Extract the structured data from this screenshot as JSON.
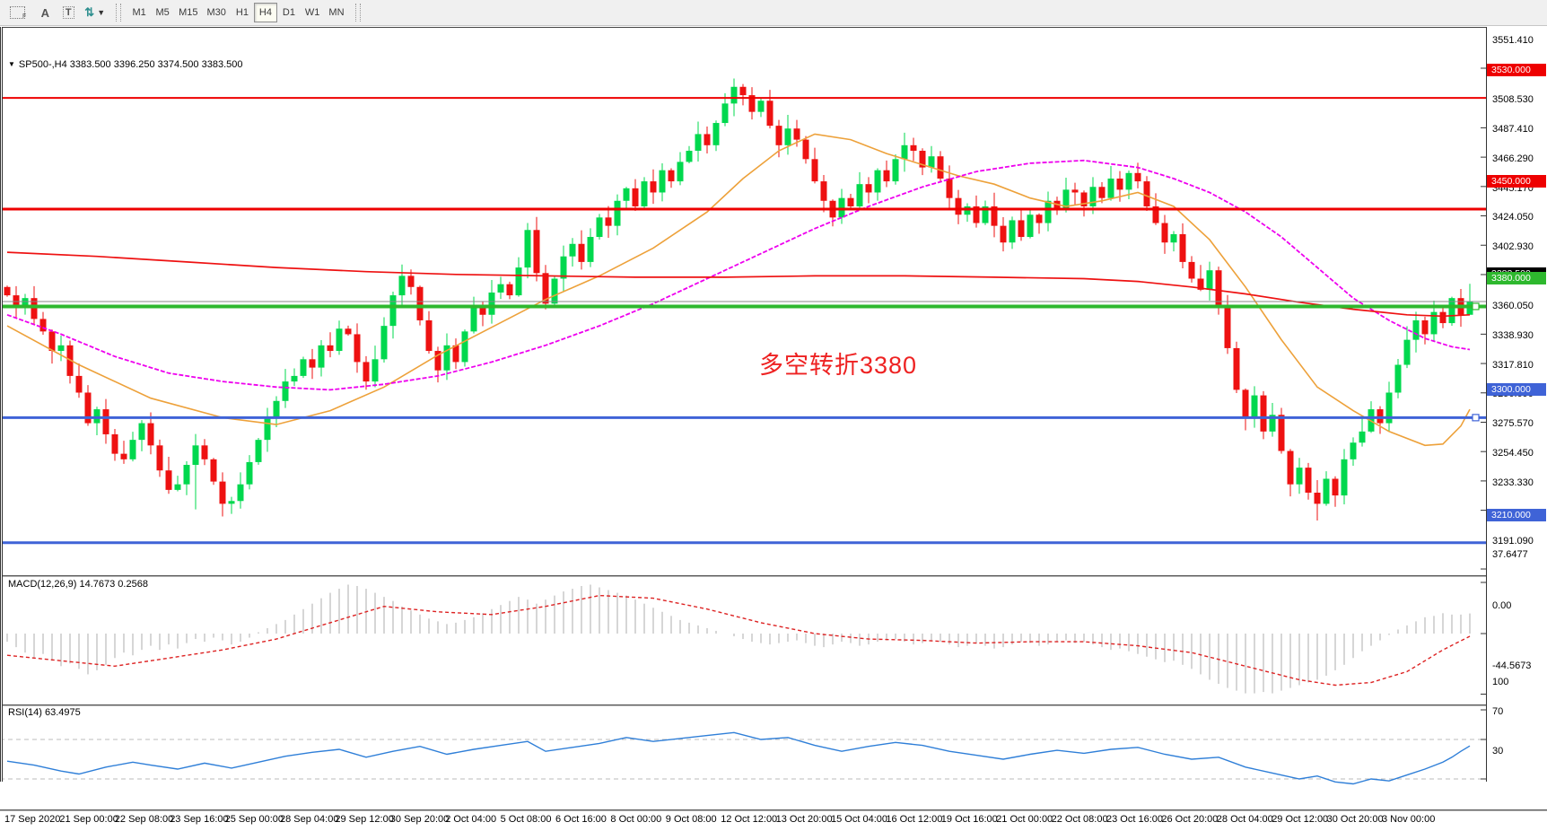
{
  "toolbar": {
    "grid_f_label": "F",
    "label_a_glyph": "A",
    "label_t_glyph": "T",
    "objects_glyph": "⇅",
    "caret_glyph": "▼",
    "timeframes": [
      "M1",
      "M5",
      "M15",
      "M30",
      "H1",
      "H4",
      "D1",
      "W1",
      "MN"
    ],
    "active_timeframe": "H4"
  },
  "symbol_bar": {
    "arrow": "▼",
    "text": "SP500-,H4  3383.500 3396.250 3374.500 3383.500"
  },
  "annotation": {
    "text": "多空转折3380",
    "color": "#ee2222"
  },
  "panels": {
    "macd": {
      "label": "MACD(12,26,9) 14.7673 0.2568"
    },
    "rsi": {
      "label": "RSI(14) 63.4975"
    }
  },
  "colors": {
    "up": "#00d84e",
    "down": "#ee1111",
    "ma_orange": "#eda13a",
    "ma_magenta": "#ee00ee",
    "ma_red": "#ee1111",
    "hline_red": "#ee0000",
    "hline_green": "#2eb82e",
    "hline_blue": "#3f63d7",
    "current_line": "#888888",
    "macd_bar": "#cccccc",
    "macd_signal": "#dd2222",
    "rsi_line": "#2f7fd8",
    "rsi_level": "#bbbbbb",
    "label_black": "#000000"
  },
  "chart_data": {
    "type": "candlestick",
    "title": "SP500-,H4",
    "timeframe": "H4",
    "ohlc_display": {
      "open": "3383.500",
      "high": "3396.250",
      "low": "3374.500",
      "close": "3383.500"
    },
    "price_axis_ticks": [
      3551.41,
      3508.53,
      3487.41,
      3466.29,
      3445.17,
      3424.05,
      3402.93,
      3360.05,
      3338.93,
      3317.81,
      3296.69,
      3275.57,
      3254.45,
      3233.33,
      3191.09
    ],
    "level_labels": [
      {
        "price": 3530,
        "text": "3530.000",
        "color": "#ee0000"
      },
      {
        "price": 3450,
        "text": "3450.000",
        "color": "#ee0000"
      },
      {
        "price": 3383.5,
        "text": "3383.500",
        "color": "#000000"
      },
      {
        "price": 3380,
        "text": "3380.000",
        "color": "#2eb82e"
      },
      {
        "price": 3300,
        "text": "3300.000",
        "color": "#3f63d7"
      },
      {
        "price": 3210,
        "text": "3210.000",
        "color": "#3f63d7"
      }
    ],
    "hlines": [
      {
        "price": 3530,
        "color": "#ee0000",
        "w": 2,
        "handle": false
      },
      {
        "price": 3450,
        "color": "#ee0000",
        "w": 3,
        "handle": false
      },
      {
        "price": 3380,
        "color": "#2eb82e",
        "w": 4,
        "handle": true
      },
      {
        "price": 3300,
        "color": "#3f63d7",
        "w": 3,
        "handle": true
      },
      {
        "price": 3210,
        "color": "#3f63d7",
        "w": 3,
        "handle": false
      }
    ],
    "current_price": {
      "value": 3383.5,
      "label": "3383.500"
    },
    "closes": [
      3388,
      3380,
      3386,
      3371,
      3362,
      3348,
      3352,
      3330,
      3318,
      3296,
      3306,
      3288,
      3274,
      3270,
      3284,
      3296,
      3280,
      3262,
      3248,
      3252,
      3266,
      3280,
      3270,
      3254,
      3238,
      3240,
      3252,
      3268,
      3284,
      3300,
      3312,
      3326,
      3330,
      3342,
      3336,
      3352,
      3348,
      3364,
      3360,
      3340,
      3326,
      3342,
      3366,
      3388,
      3402,
      3394,
      3370,
      3348,
      3334,
      3352,
      3340,
      3362,
      3380,
      3374,
      3390,
      3396,
      3388,
      3408,
      3435,
      3404,
      3382,
      3400,
      3416,
      3425,
      3412,
      3430,
      3444,
      3438,
      3456,
      3465,
      3452,
      3470,
      3462,
      3478,
      3470,
      3484,
      3492,
      3504,
      3496,
      3512,
      3526,
      3538,
      3532,
      3520,
      3528,
      3510,
      3496,
      3508,
      3500,
      3486,
      3470,
      3456,
      3444,
      3458,
      3452,
      3468,
      3462,
      3478,
      3470,
      3486,
      3496,
      3492,
      3480,
      3488,
      3472,
      3458,
      3446,
      3452,
      3440,
      3452,
      3438,
      3426,
      3442,
      3430,
      3446,
      3440,
      3456,
      3450,
      3464,
      3462,
      3452,
      3466,
      3458,
      3472,
      3464,
      3476,
      3470,
      3452,
      3440,
      3426,
      3432,
      3412,
      3400,
      3392,
      3406,
      3380,
      3350,
      3320,
      3300,
      3316,
      3290,
      3302,
      3276,
      3252,
      3264,
      3246,
      3238,
      3256,
      3244,
      3270,
      3282,
      3290,
      3306,
      3296,
      3318,
      3338,
      3356,
      3370,
      3360,
      3376,
      3368,
      3386,
      3374,
      3383.5
    ],
    "first_open": 3394,
    "wick_high_overrides": {
      "58": 3440,
      "81": 3544,
      "82": 3540,
      "163": 3396.25
    },
    "wick_low_overrides": {
      "21": 3234,
      "146": 3226,
      "163": 3374.5
    },
    "ma": {
      "orange": [
        [
          0,
          3366
        ],
        [
          8,
          3338
        ],
        [
          16,
          3314
        ],
        [
          24,
          3300
        ],
        [
          30,
          3295
        ],
        [
          36,
          3305
        ],
        [
          42,
          3322
        ],
        [
          48,
          3345
        ],
        [
          54,
          3365
        ],
        [
          60,
          3385
        ],
        [
          66,
          3402
        ],
        [
          72,
          3422
        ],
        [
          78,
          3448
        ],
        [
          82,
          3472
        ],
        [
          86,
          3492
        ],
        [
          90,
          3504
        ],
        [
          94,
          3500
        ],
        [
          98,
          3490
        ],
        [
          102,
          3482
        ],
        [
          106,
          3474
        ],
        [
          110,
          3468
        ],
        [
          114,
          3458
        ],
        [
          118,
          3452
        ],
        [
          122,
          3456
        ],
        [
          126,
          3462
        ],
        [
          130,
          3452
        ],
        [
          134,
          3428
        ],
        [
          138,
          3394
        ],
        [
          142,
          3356
        ],
        [
          146,
          3322
        ],
        [
          150,
          3305
        ],
        [
          154,
          3290
        ],
        [
          158,
          3280
        ],
        [
          160,
          3281
        ],
        [
          162,
          3294
        ],
        [
          163,
          3306
        ]
      ],
      "magenta": [
        [
          0,
          3374
        ],
        [
          6,
          3360
        ],
        [
          12,
          3344
        ],
        [
          18,
          3332
        ],
        [
          24,
          3326
        ],
        [
          30,
          3322
        ],
        [
          36,
          3320
        ],
        [
          42,
          3324
        ],
        [
          48,
          3330
        ],
        [
          54,
          3340
        ],
        [
          60,
          3352
        ],
        [
          66,
          3366
        ],
        [
          72,
          3382
        ],
        [
          78,
          3400
        ],
        [
          84,
          3418
        ],
        [
          90,
          3436
        ],
        [
          96,
          3452
        ],
        [
          102,
          3466
        ],
        [
          108,
          3477
        ],
        [
          114,
          3483
        ],
        [
          120,
          3485
        ],
        [
          126,
          3480
        ],
        [
          130,
          3472
        ],
        [
          134,
          3462
        ],
        [
          138,
          3448
        ],
        [
          142,
          3430
        ],
        [
          146,
          3408
        ],
        [
          150,
          3386
        ],
        [
          154,
          3370
        ],
        [
          158,
          3357
        ],
        [
          161,
          3351
        ],
        [
          163,
          3349
        ]
      ],
      "red": [
        [
          0,
          3419
        ],
        [
          10,
          3416
        ],
        [
          20,
          3412
        ],
        [
          30,
          3408
        ],
        [
          40,
          3405
        ],
        [
          50,
          3403
        ],
        [
          60,
          3402
        ],
        [
          70,
          3401
        ],
        [
          80,
          3401
        ],
        [
          90,
          3402
        ],
        [
          100,
          3402
        ],
        [
          110,
          3401
        ],
        [
          120,
          3400
        ],
        [
          126,
          3398
        ],
        [
          132,
          3394
        ],
        [
          138,
          3389
        ],
        [
          144,
          3383
        ],
        [
          150,
          3378
        ],
        [
          156,
          3374
        ],
        [
          160,
          3373
        ],
        [
          163,
          3374
        ]
      ]
    },
    "macd": {
      "hist": [
        -6,
        -10,
        -14,
        -18,
        -15,
        -20,
        -24,
        -22,
        -26,
        -30,
        -27,
        -23,
        -18,
        -14,
        -16,
        -12,
        -9,
        -12,
        -8,
        -11,
        -7,
        -4,
        -6,
        -3,
        -5,
        -8,
        -6,
        -3,
        1,
        4,
        7,
        10,
        14,
        18,
        22,
        26,
        30,
        33,
        36,
        35,
        33,
        30,
        27,
        24,
        20,
        17,
        14,
        11,
        9,
        7,
        8,
        10,
        12,
        15,
        18,
        21,
        24,
        27,
        25,
        22,
        25,
        28,
        31,
        33,
        35,
        36,
        34,
        32,
        30,
        28,
        25,
        22,
        19,
        16,
        13,
        10,
        8,
        6,
        4,
        2,
        0,
        -2,
        -4,
        -6,
        -7,
        -8,
        -7,
        -6,
        -5,
        -7,
        -9,
        -10,
        -8,
        -6,
        -7,
        -9,
        -8,
        -6,
        -5,
        -4,
        -6,
        -8,
        -7,
        -5,
        -6,
        -8,
        -10,
        -9,
        -7,
        -9,
        -11,
        -10,
        -8,
        -6,
        -7,
        -9,
        -8,
        -6,
        -5,
        -7,
        -6,
        -8,
        -10,
        -12,
        -11,
        -13,
        -15,
        -17,
        -19,
        -21,
        -20,
        -23,
        -26,
        -30,
        -34,
        -37,
        -40,
        -42,
        -44,
        -44,
        -43,
        -44,
        -42,
        -40,
        -38,
        -36,
        -34,
        -31,
        -27,
        -23,
        -18,
        -13,
        -9,
        -5,
        -1,
        3,
        6,
        9,
        12,
        13,
        15,
        14,
        14,
        14.8
      ],
      "signal": [
        [
          0,
          -16
        ],
        [
          6,
          -20
        ],
        [
          12,
          -24
        ],
        [
          18,
          -18
        ],
        [
          24,
          -12
        ],
        [
          30,
          -4
        ],
        [
          36,
          8
        ],
        [
          42,
          20
        ],
        [
          48,
          16
        ],
        [
          54,
          14
        ],
        [
          60,
          20
        ],
        [
          66,
          28
        ],
        [
          72,
          26
        ],
        [
          78,
          18
        ],
        [
          84,
          8
        ],
        [
          90,
          0
        ],
        [
          96,
          -4
        ],
        [
          102,
          -5
        ],
        [
          108,
          -7
        ],
        [
          114,
          -6
        ],
        [
          120,
          -6
        ],
        [
          126,
          -9
        ],
        [
          132,
          -14
        ],
        [
          138,
          -24
        ],
        [
          144,
          -34
        ],
        [
          148,
          -38
        ],
        [
          152,
          -36
        ],
        [
          156,
          -28
        ],
        [
          160,
          -12
        ],
        [
          163,
          -2
        ]
      ],
      "axis": [
        {
          "v": 37.6477,
          "text": "37.6477"
        },
        {
          "v": 0,
          "text": "0.00"
        },
        {
          "v": -44.5673,
          "text": "-44.5673"
        }
      ]
    },
    "rsi": {
      "points": [
        [
          0,
          48
        ],
        [
          3,
          44
        ],
        [
          6,
          38
        ],
        [
          8,
          35
        ],
        [
          11,
          42
        ],
        [
          14,
          47
        ],
        [
          16,
          44
        ],
        [
          19,
          40
        ],
        [
          22,
          46
        ],
        [
          25,
          41
        ],
        [
          28,
          47
        ],
        [
          31,
          53
        ],
        [
          34,
          57
        ],
        [
          37,
          60
        ],
        [
          40,
          52
        ],
        [
          43,
          58
        ],
        [
          46,
          63
        ],
        [
          49,
          55
        ],
        [
          52,
          60
        ],
        [
          55,
          64
        ],
        [
          58,
          68
        ],
        [
          60,
          58
        ],
        [
          63,
          62
        ],
        [
          66,
          66
        ],
        [
          69,
          72
        ],
        [
          72,
          68
        ],
        [
          75,
          71
        ],
        [
          78,
          74
        ],
        [
          81,
          77
        ],
        [
          84,
          70
        ],
        [
          87,
          72
        ],
        [
          90,
          64
        ],
        [
          93,
          58
        ],
        [
          96,
          63
        ],
        [
          99,
          67
        ],
        [
          102,
          64
        ],
        [
          105,
          58
        ],
        [
          108,
          54
        ],
        [
          111,
          50
        ],
        [
          114,
          55
        ],
        [
          117,
          59
        ],
        [
          120,
          56
        ],
        [
          123,
          60
        ],
        [
          126,
          62
        ],
        [
          129,
          55
        ],
        [
          132,
          50
        ],
        [
          135,
          52
        ],
        [
          138,
          42
        ],
        [
          141,
          36
        ],
        [
          144,
          30
        ],
        [
          146,
          33
        ],
        [
          148,
          27
        ],
        [
          150,
          25
        ],
        [
          152,
          30
        ],
        [
          154,
          28
        ],
        [
          156,
          34
        ],
        [
          158,
          40
        ],
        [
          160,
          47
        ],
        [
          161,
          52
        ],
        [
          162,
          58
        ],
        [
          163,
          63.5
        ]
      ],
      "levels": [
        70,
        30
      ],
      "axis": [
        {
          "v": 100,
          "text": "100"
        },
        {
          "v": 70,
          "text": "70"
        },
        {
          "v": 30,
          "text": "30"
        }
      ]
    },
    "x_labels": [
      "17 Sep 2020",
      "21 Sep 00:00",
      "22 Sep 08:00",
      "23 Sep 16:00",
      "25 Sep 00:00",
      "28 Sep 04:00",
      "29 Sep 12:00",
      "30 Sep 20:00",
      "2 Oct 04:00",
      "5 Oct 08:00",
      "6 Oct 16:00",
      "8 Oct 00:00",
      "9 Oct 08:00",
      "12 Oct 12:00",
      "13 Oct 20:00",
      "15 Oct 04:00",
      "16 Oct 12:00",
      "19 Oct 16:00",
      "21 Oct 00:00",
      "22 Oct 08:00",
      "23 Oct 16:00",
      "26 Oct 20:00",
      "28 Oct 04:00",
      "29 Oct 12:00",
      "30 Oct 20:00",
      "3 Nov 00:00"
    ]
  }
}
